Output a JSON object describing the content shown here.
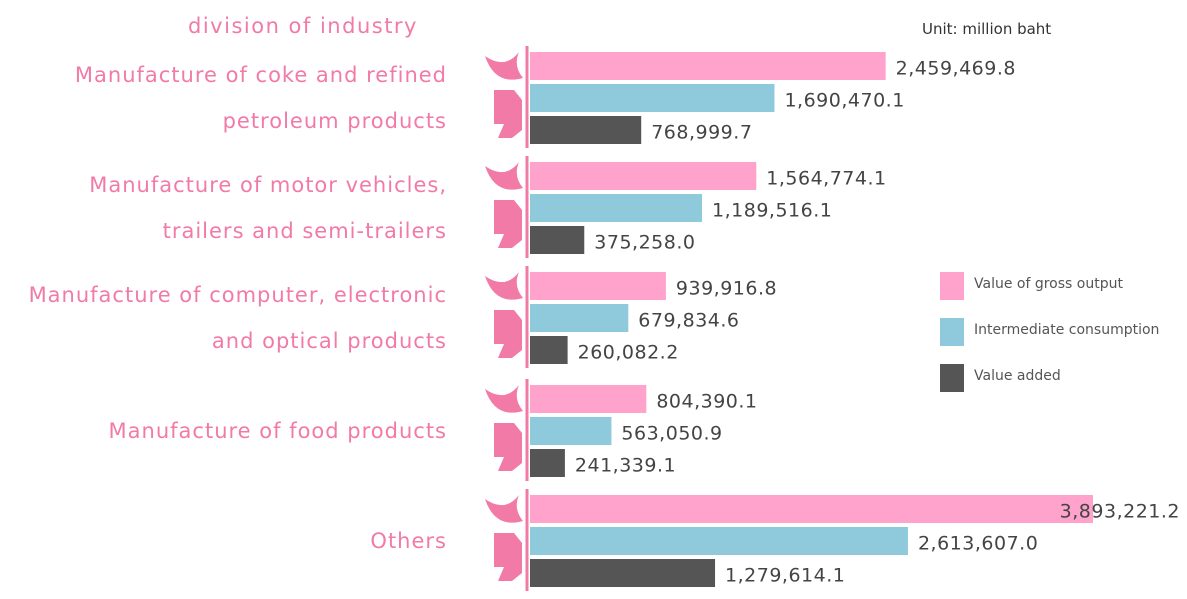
{
  "chart_data": {
    "type": "bar",
    "orientation": "horizontal",
    "title": "division of industry",
    "unit_note": "Unit: million baht",
    "categories": [
      "Manufacture of coke and refined petroleum products",
      "Manufacture of motor vehicles, trailers and semi-trailers",
      "Manufacture of computer, electronic and optical products",
      "Manufacture of food products",
      "Others"
    ],
    "series": [
      {
        "name": "Value of gross output",
        "color": "#ffa3cc",
        "values": [
          2459469.8,
          1564774.1,
          939916.8,
          804390.1,
          3893221.2
        ],
        "value_labels": [
          "2,459,469.8",
          "1,564,774.1",
          "939,916.8",
          "804,390.1",
          "3,893,221.2"
        ]
      },
      {
        "name": "Intermediate consumption",
        "color": "#8ecadb",
        "values": [
          1690470.1,
          1189516.1,
          679834.6,
          563050.9,
          2613607.0
        ],
        "value_labels": [
          "1,690,470.1",
          "1,189,516.1",
          "679,834.6",
          "563,050.9",
          "2,613,607.0"
        ]
      },
      {
        "name": "Value added",
        "color": "#555555",
        "values": [
          768999.7,
          375258.0,
          260082.2,
          241339.1,
          1279614.1
        ],
        "value_labels": [
          "768,999.7",
          "375,258.0",
          "260,082.2",
          "241,339.1",
          "1,279,614.1"
        ]
      }
    ]
  }
}
